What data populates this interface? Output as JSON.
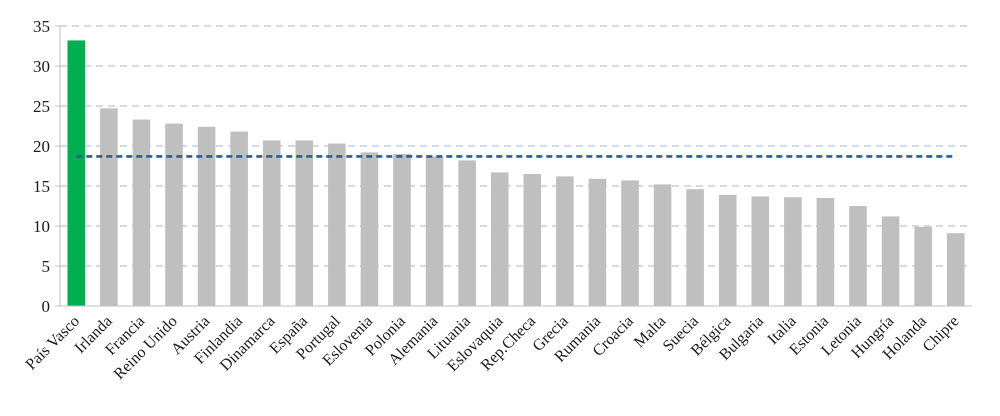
{
  "chart_data": {
    "type": "bar",
    "title": "",
    "xlabel": "",
    "ylabel": "",
    "ylim": [
      0,
      35
    ],
    "yticks": [
      0,
      5,
      10,
      15,
      20,
      25,
      30,
      35
    ],
    "grid": true,
    "legend": "none",
    "categories": [
      "País Vasco",
      "Irlanda",
      "Francia",
      "Reino Unido",
      "Austria",
      "Finlandia",
      "Dinamarca",
      "España",
      "Portugal",
      "Eslovenia",
      "Polonia",
      "Alemania",
      "Lituania",
      "Eslovaquia",
      "Rep.Checa",
      "Grecia",
      "Rumania",
      "Croacia",
      "Malta",
      "Suecia",
      "Bélgica",
      "Bulgaria",
      "Italia",
      "Estonia",
      "Letonia",
      "Hungría",
      "Holanda",
      "Chipre"
    ],
    "values": [
      33.2,
      24.7,
      23.3,
      22.8,
      22.4,
      21.8,
      20.7,
      20.7,
      20.3,
      19.2,
      19.0,
      18.7,
      18.2,
      16.7,
      16.5,
      16.2,
      15.9,
      15.7,
      15.2,
      14.6,
      13.9,
      13.7,
      13.6,
      13.5,
      12.5,
      11.2,
      9.9,
      9.1
    ],
    "highlight_index": 0,
    "reference_line": 18.7,
    "colors": {
      "highlight": "#00b050",
      "bar": "#bfbfbf",
      "reference": "#1f5f9f",
      "grid": "#b3c6d8",
      "axis": "#bfbfbf"
    }
  }
}
